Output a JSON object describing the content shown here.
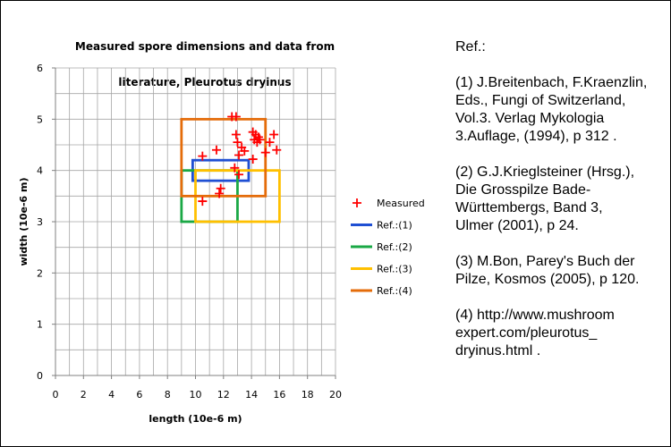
{
  "chart_data": {
    "type": "scatter",
    "title": "Measured spore dimensions and data from literature, Pleurotus dryinus",
    "title_lines": [
      "Measured spore dimensions and data from",
      "literature, Pleurotus dryinus"
    ],
    "xlabel": "length (10e-6 m)",
    "ylabel": "width (10e-6 m)",
    "xlim": [
      0,
      20
    ],
    "ylim": [
      0,
      6
    ],
    "xticks": [
      0,
      2,
      4,
      6,
      8,
      10,
      12,
      14,
      16,
      18,
      20
    ],
    "yticks": [
      0,
      1,
      2,
      3,
      4,
      5,
      6
    ],
    "grid": true,
    "legend_placement": "right",
    "series": [
      {
        "name": "Measured",
        "kind": "points",
        "marker": "plus",
        "color": "#ff0000",
        "points": [
          [
            12.6,
            5.05
          ],
          [
            12.9,
            5.05
          ],
          [
            14.1,
            4.75
          ],
          [
            14.3,
            4.7
          ],
          [
            14.5,
            4.65
          ],
          [
            14.6,
            4.6
          ],
          [
            14.2,
            4.6
          ],
          [
            14.4,
            4.55
          ],
          [
            15.6,
            4.7
          ],
          [
            15.3,
            4.55
          ],
          [
            15.8,
            4.4
          ],
          [
            15.0,
            4.35
          ],
          [
            12.9,
            4.7
          ],
          [
            13.0,
            4.55
          ],
          [
            13.3,
            4.45
          ],
          [
            13.5,
            4.38
          ],
          [
            13.1,
            4.3
          ],
          [
            11.5,
            4.4
          ],
          [
            10.5,
            4.28
          ],
          [
            14.1,
            4.22
          ],
          [
            12.8,
            4.05
          ],
          [
            13.1,
            3.92
          ],
          [
            11.8,
            3.65
          ],
          [
            11.7,
            3.55
          ],
          [
            10.5,
            3.4
          ]
        ]
      },
      {
        "name": "Ref.:(1)",
        "kind": "rect",
        "color": "#1f4fd3",
        "x": [
          9.8,
          13.8
        ],
        "y": [
          3.8,
          4.2
        ]
      },
      {
        "name": "Ref.:(2)",
        "kind": "rect",
        "color": "#1aa845",
        "x": [
          9.0,
          13.0
        ],
        "y": [
          3.0,
          4.0
        ]
      },
      {
        "name": "Ref.:(3)",
        "kind": "rect",
        "color": "#ffc000",
        "x": [
          10.0,
          16.0
        ],
        "y": [
          3.0,
          4.0
        ]
      },
      {
        "name": "Ref.:(4)",
        "kind": "rect",
        "color": "#e46c0a",
        "x": [
          9.0,
          15.0
        ],
        "y": [
          3.5,
          5.0
        ]
      }
    ]
  },
  "references": {
    "title": "Ref.:",
    "items": [
      "(1) J.Breitenbach, F.Kraenzlin,\nEds., Fungi of Switzerland,\nVol.3. Verlag Mykologia\n3.Auflage, (1994), p 312 .",
      "(2) G.J.Krieglsteiner (Hrsg.),\nDie Grosspilze Bade-\nWürttembergs, Band 3,\nUlmer (2001), p 24.",
      "(3) M.Bon, Parey's Buch der\nPilze, Kosmos (2005), p 120.",
      "(4) http://www.mushroom\nexpert.com/pleurotus_\ndryinus.html ."
    ]
  }
}
